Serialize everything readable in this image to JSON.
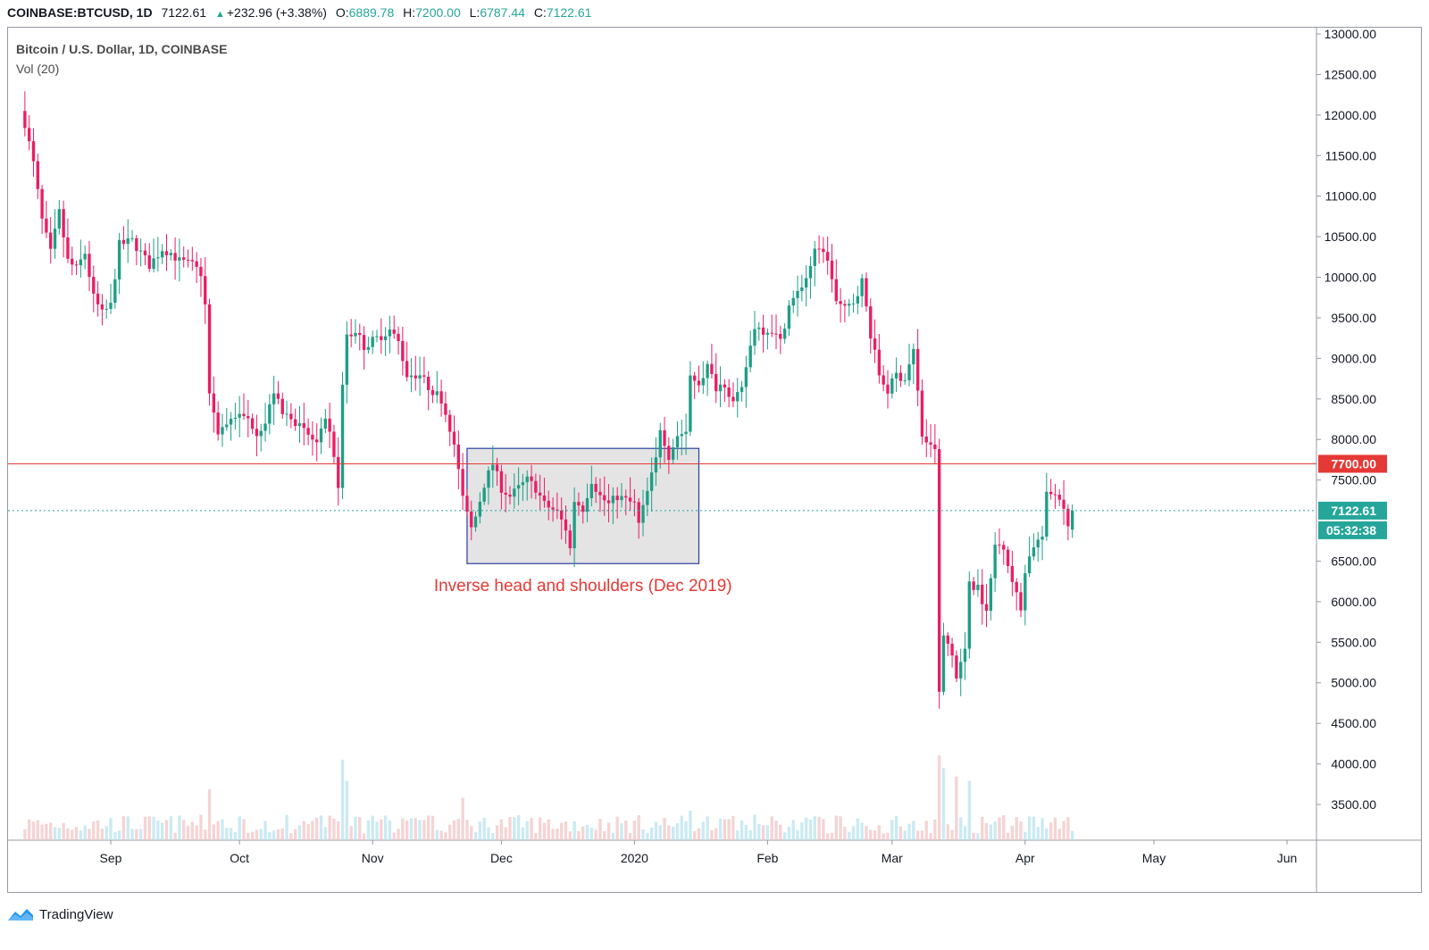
{
  "header": {
    "symbol": "COINBASE:BTCUSD, 1D",
    "last": "7122.61",
    "change": "+232.96 (+3.38%)",
    "o_label": "O:",
    "o": "6889.78",
    "h_label": "H:",
    "h": "7200.00",
    "l_label": "L:",
    "l": "6787.44",
    "c_label": "C:",
    "c": "7122.61"
  },
  "legend": {
    "title": "Bitcoin / U.S. Dollar, 1D, COINBASE",
    "volume": "Vol (20)"
  },
  "brand": {
    "name": "TradingView",
    "icon": "tradingview-logo-icon"
  },
  "colors": {
    "up": "#26a69a",
    "down": "#ef5350",
    "candle_up": "#1e9e86",
    "candle_down": "#e91e63",
    "resistance": "#e53935",
    "box_border": "#2a3f9e",
    "box_fill": "#e4e4e4",
    "annotation": "#e53935"
  },
  "chart_data": {
    "type": "candlestick",
    "title": "Bitcoin / U.S. Dollar, 1D, COINBASE",
    "y_ticks": [
      "13000.00",
      "12500.00",
      "12000.00",
      "11500.00",
      "11000.00",
      "10500.00",
      "10000.00",
      "9500.00",
      "9000.00",
      "8500.00",
      "8000.00",
      "7500.00",
      "6500.00",
      "6000.00",
      "5500.00",
      "5000.00",
      "4500.00",
      "4000.00",
      "3500.00"
    ],
    "x_ticks": [
      {
        "label": "Sep",
        "date": "2019-09-01"
      },
      {
        "label": "Oct",
        "date": "2019-10-01"
      },
      {
        "label": "Nov",
        "date": "2019-11-01"
      },
      {
        "label": "Dec",
        "date": "2019-12-01"
      },
      {
        "label": "2020",
        "date": "2020-01-01"
      },
      {
        "label": "Feb",
        "date": "2020-02-01"
      },
      {
        "label": "Mar",
        "date": "2020-03-01"
      },
      {
        "label": "Apr",
        "date": "2020-04-01"
      },
      {
        "label": "May",
        "date": "2020-05-01"
      },
      {
        "label": "Jun",
        "date": "2020-06-01"
      }
    ],
    "x_range": [
      "2019-08-11",
      "2020-06-08"
    ],
    "y_range": [
      3150,
      13100
    ],
    "anchors": [
      {
        "date": "2019-08-12",
        "price": 11900
      },
      {
        "date": "2019-08-14",
        "price": 11400
      },
      {
        "date": "2019-08-16",
        "price": 10700
      },
      {
        "date": "2019-08-18",
        "price": 10300
      },
      {
        "date": "2019-08-20",
        "price": 10800
      },
      {
        "date": "2019-08-22",
        "price": 10200
      },
      {
        "date": "2019-08-24",
        "price": 10100
      },
      {
        "date": "2019-08-26",
        "price": 10300
      },
      {
        "date": "2019-08-28",
        "price": 9750
      },
      {
        "date": "2019-08-30",
        "price": 9550
      },
      {
        "date": "2019-09-01",
        "price": 9650
      },
      {
        "date": "2019-09-03",
        "price": 10400
      },
      {
        "date": "2019-09-06",
        "price": 10450
      },
      {
        "date": "2019-09-08",
        "price": 10300
      },
      {
        "date": "2019-09-10",
        "price": 10150
      },
      {
        "date": "2019-09-13",
        "price": 10350
      },
      {
        "date": "2019-09-15",
        "price": 10300
      },
      {
        "date": "2019-09-17",
        "price": 10200
      },
      {
        "date": "2019-09-20",
        "price": 10150
      },
      {
        "date": "2019-09-22",
        "price": 10050
      },
      {
        "date": "2019-09-23",
        "price": 9650
      },
      {
        "date": "2019-09-24",
        "price": 8550
      },
      {
        "date": "2019-09-26",
        "price": 8100
      },
      {
        "date": "2019-09-28",
        "price": 8200
      },
      {
        "date": "2019-09-30",
        "price": 8300
      },
      {
        "date": "2019-10-03",
        "price": 8250
      },
      {
        "date": "2019-10-05",
        "price": 8100
      },
      {
        "date": "2019-10-07",
        "price": 8200
      },
      {
        "date": "2019-10-09",
        "price": 8600
      },
      {
        "date": "2019-10-11",
        "price": 8300
      },
      {
        "date": "2019-10-13",
        "price": 8300
      },
      {
        "date": "2019-10-15",
        "price": 8150
      },
      {
        "date": "2019-10-17",
        "price": 8050
      },
      {
        "date": "2019-10-19",
        "price": 7950
      },
      {
        "date": "2019-10-21",
        "price": 8200
      },
      {
        "date": "2019-10-22",
        "price": 8050
      },
      {
        "date": "2019-10-24",
        "price": 7450
      },
      {
        "date": "2019-10-25",
        "price": 8650
      },
      {
        "date": "2019-10-26",
        "price": 9250
      },
      {
        "date": "2019-10-28",
        "price": 9350
      },
      {
        "date": "2019-10-30",
        "price": 9150
      },
      {
        "date": "2019-11-02",
        "price": 9250
      },
      {
        "date": "2019-11-05",
        "price": 9350
      },
      {
        "date": "2019-11-07",
        "price": 9200
      },
      {
        "date": "2019-11-09",
        "price": 8800
      },
      {
        "date": "2019-11-12",
        "price": 8800
      },
      {
        "date": "2019-11-14",
        "price": 8650
      },
      {
        "date": "2019-11-17",
        "price": 8500
      },
      {
        "date": "2019-11-19",
        "price": 8150
      },
      {
        "date": "2019-11-21",
        "price": 7650
      },
      {
        "date": "2019-11-22",
        "price": 7250
      },
      {
        "date": "2019-11-24",
        "price": 6900
      },
      {
        "date": "2019-11-25",
        "price": 7050
      },
      {
        "date": "2019-11-27",
        "price": 7450
      },
      {
        "date": "2019-11-29",
        "price": 7700
      },
      {
        "date": "2019-12-01",
        "price": 7400
      },
      {
        "date": "2019-12-03",
        "price": 7300
      },
      {
        "date": "2019-12-05",
        "price": 7400
      },
      {
        "date": "2019-12-07",
        "price": 7500
      },
      {
        "date": "2019-12-09",
        "price": 7400
      },
      {
        "date": "2019-12-11",
        "price": 7200
      },
      {
        "date": "2019-12-14",
        "price": 7100
      },
      {
        "date": "2019-12-16",
        "price": 6900
      },
      {
        "date": "2019-12-17",
        "price": 6650
      },
      {
        "date": "2019-12-18",
        "price": 7250
      },
      {
        "date": "2019-12-20",
        "price": 7150
      },
      {
        "date": "2019-12-22",
        "price": 7500
      },
      {
        "date": "2019-12-24",
        "price": 7300
      },
      {
        "date": "2019-12-26",
        "price": 7200
      },
      {
        "date": "2019-12-28",
        "price": 7300
      },
      {
        "date": "2019-12-30",
        "price": 7250
      },
      {
        "date": "2020-01-01",
        "price": 7200
      },
      {
        "date": "2020-01-02",
        "price": 6950
      },
      {
        "date": "2020-01-04",
        "price": 7350
      },
      {
        "date": "2020-01-06",
        "price": 7750
      },
      {
        "date": "2020-01-07",
        "price": 8150
      },
      {
        "date": "2020-01-09",
        "price": 7800
      },
      {
        "date": "2020-01-11",
        "price": 8050
      },
      {
        "date": "2020-01-13",
        "price": 8100
      },
      {
        "date": "2020-01-14",
        "price": 8800
      },
      {
        "date": "2020-01-16",
        "price": 8700
      },
      {
        "date": "2020-01-18",
        "price": 8900
      },
      {
        "date": "2020-01-20",
        "price": 8650
      },
      {
        "date": "2020-01-22",
        "price": 8700
      },
      {
        "date": "2020-01-24",
        "price": 8450
      },
      {
        "date": "2020-01-26",
        "price": 8600
      },
      {
        "date": "2020-01-27",
        "price": 8900
      },
      {
        "date": "2020-01-29",
        "price": 9400
      },
      {
        "date": "2020-01-31",
        "price": 9350
      },
      {
        "date": "2020-02-02",
        "price": 9350
      },
      {
        "date": "2020-02-04",
        "price": 9200
      },
      {
        "date": "2020-02-06",
        "price": 9650
      },
      {
        "date": "2020-02-08",
        "price": 9800
      },
      {
        "date": "2020-02-10",
        "price": 10000
      },
      {
        "date": "2020-02-12",
        "price": 10300
      },
      {
        "date": "2020-02-14",
        "price": 10350
      },
      {
        "date": "2020-02-16",
        "price": 10000
      },
      {
        "date": "2020-02-17",
        "price": 9700
      },
      {
        "date": "2020-02-19",
        "price": 9600
      },
      {
        "date": "2020-02-21",
        "price": 9700
      },
      {
        "date": "2020-02-23",
        "price": 9950
      },
      {
        "date": "2020-02-25",
        "price": 9300
      },
      {
        "date": "2020-02-27",
        "price": 8800
      },
      {
        "date": "2020-02-29",
        "price": 8600
      },
      {
        "date": "2020-03-02",
        "price": 8800
      },
      {
        "date": "2020-03-04",
        "price": 8750
      },
      {
        "date": "2020-03-06",
        "price": 9100
      },
      {
        "date": "2020-03-08",
        "price": 8050
      },
      {
        "date": "2020-03-10",
        "price": 7900
      },
      {
        "date": "2020-03-11",
        "price": 7900
      },
      {
        "date": "2020-03-12",
        "price": 4850
      },
      {
        "date": "2020-03-13",
        "price": 5600
      },
      {
        "date": "2020-03-15",
        "price": 5350
      },
      {
        "date": "2020-03-16",
        "price": 5050
      },
      {
        "date": "2020-03-18",
        "price": 5400
      },
      {
        "date": "2020-03-19",
        "price": 6200
      },
      {
        "date": "2020-03-21",
        "price": 6200
      },
      {
        "date": "2020-03-23",
        "price": 5850
      },
      {
        "date": "2020-03-25",
        "price": 6700
      },
      {
        "date": "2020-03-27",
        "price": 6700
      },
      {
        "date": "2020-03-29",
        "price": 6250
      },
      {
        "date": "2020-03-31",
        "price": 5900
      },
      {
        "date": "2020-04-01",
        "price": 6400
      },
      {
        "date": "2020-04-03",
        "price": 6700
      },
      {
        "date": "2020-04-05",
        "price": 6800
      },
      {
        "date": "2020-04-06",
        "price": 7300
      },
      {
        "date": "2020-04-08",
        "price": 7350
      },
      {
        "date": "2020-04-10",
        "price": 7200
      },
      {
        "date": "2020-04-11",
        "price": 6890
      },
      {
        "date": "2020-04-12",
        "price": 7122.61
      }
    ],
    "volume_spikes": [
      {
        "date": "2019-09-24",
        "level": 0.6
      },
      {
        "date": "2019-10-25",
        "level": 0.95
      },
      {
        "date": "2019-10-26",
        "level": 0.7
      },
      {
        "date": "2019-11-22",
        "level": 0.5
      },
      {
        "date": "2020-01-14",
        "level": 0.35
      },
      {
        "date": "2020-03-12",
        "level": 1.0
      },
      {
        "date": "2020-03-13",
        "level": 0.85
      },
      {
        "date": "2020-03-16",
        "level": 0.75
      },
      {
        "date": "2020-03-19",
        "level": 0.7
      }
    ],
    "horizontal_lines": [
      {
        "price": 7700,
        "label": "7700.00",
        "style": "solid"
      },
      {
        "price": 7122.61,
        "label": "7122.61",
        "style": "dotted"
      }
    ],
    "countdown": "05:32:38",
    "pattern_box": {
      "start": "2019-11-23",
      "end": "2020-01-16",
      "low": 6470,
      "high": 7890,
      "label": "Inverse head and shoulders (Dec 2019)"
    }
  }
}
